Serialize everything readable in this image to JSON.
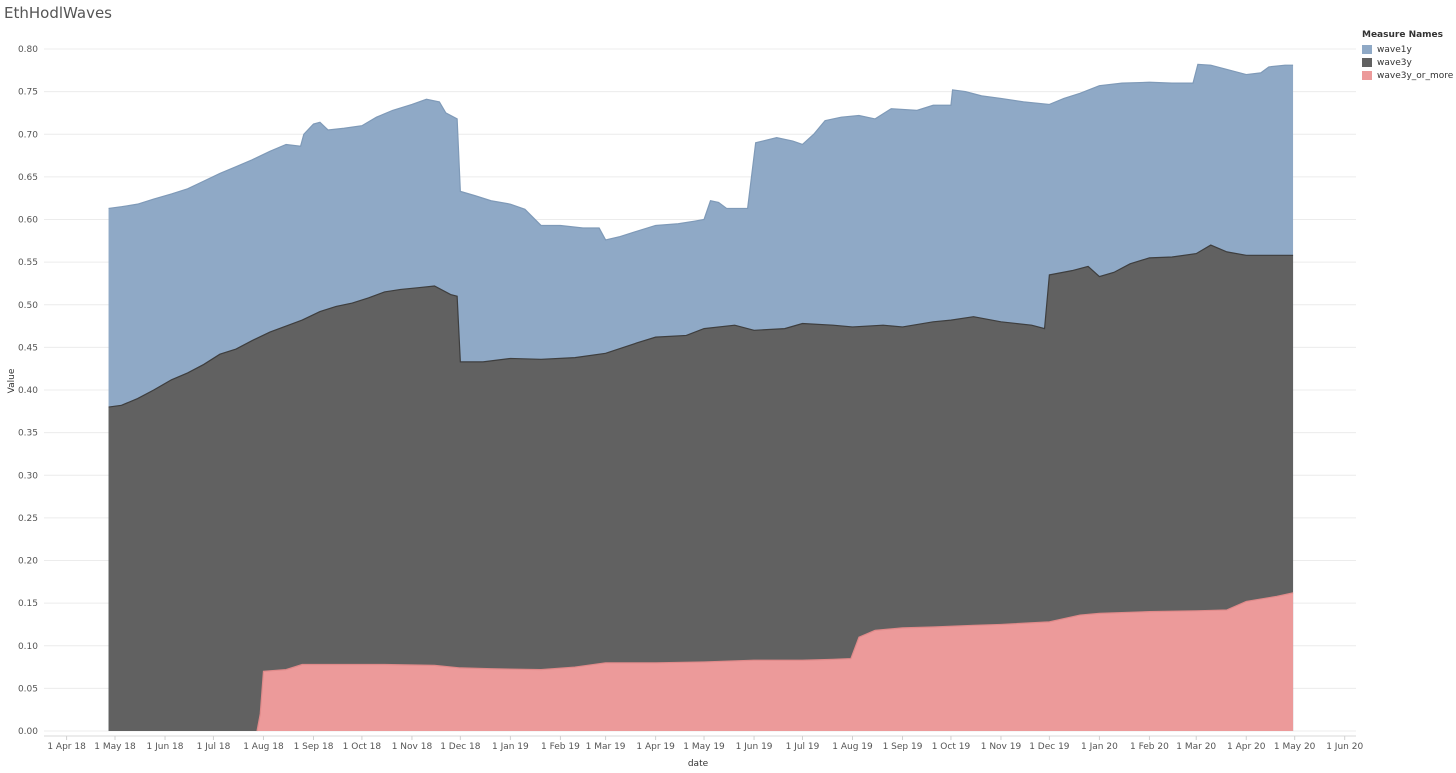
{
  "title": "EthHodlWaves",
  "chart_data": {
    "type": "area",
    "stacked": false,
    "xlabel": "date",
    "ylabel": "Value",
    "ylim": [
      0,
      0.8
    ],
    "xlim": [
      "2018-03-18",
      "2020-06-08"
    ],
    "y_ticks": [
      "0.00",
      "0.05",
      "0.10",
      "0.15",
      "0.20",
      "0.25",
      "0.30",
      "0.35",
      "0.40",
      "0.45",
      "0.50",
      "0.55",
      "0.60",
      "0.65",
      "0.70",
      "0.75",
      "0.80"
    ],
    "x_ticks": [
      {
        "date": "2018-04-01",
        "label": "1 Apr 18"
      },
      {
        "date": "2018-05-01",
        "label": "1 May 18"
      },
      {
        "date": "2018-06-01",
        "label": "1 Jun 18"
      },
      {
        "date": "2018-07-01",
        "label": "1 Jul 18"
      },
      {
        "date": "2018-08-01",
        "label": "1 Aug 18"
      },
      {
        "date": "2018-09-01",
        "label": "1 Sep 18"
      },
      {
        "date": "2018-10-01",
        "label": "1 Oct 18"
      },
      {
        "date": "2018-11-01",
        "label": "1 Nov 18"
      },
      {
        "date": "2018-12-01",
        "label": "1 Dec 18"
      },
      {
        "date": "2019-01-01",
        "label": "1 Jan 19"
      },
      {
        "date": "2019-02-01",
        "label": "1 Feb 19"
      },
      {
        "date": "2019-03-01",
        "label": "1 Mar 19"
      },
      {
        "date": "2019-04-01",
        "label": "1 Apr 19"
      },
      {
        "date": "2019-05-01",
        "label": "1 May 19"
      },
      {
        "date": "2019-06-01",
        "label": "1 Jun 19"
      },
      {
        "date": "2019-07-01",
        "label": "1 Jul 19"
      },
      {
        "date": "2019-08-01",
        "label": "1 Aug 19"
      },
      {
        "date": "2019-09-01",
        "label": "1 Sep 19"
      },
      {
        "date": "2019-10-01",
        "label": "1 Oct 19"
      },
      {
        "date": "2019-11-01",
        "label": "1 Nov 19"
      },
      {
        "date": "2019-12-01",
        "label": "1 Dec 19"
      },
      {
        "date": "2020-01-01",
        "label": "1 Jan 20"
      },
      {
        "date": "2020-02-01",
        "label": "1 Feb 20"
      },
      {
        "date": "2020-03-01",
        "label": "1 Mar 20"
      },
      {
        "date": "2020-04-01",
        "label": "1 Apr 20"
      },
      {
        "date": "2020-05-01",
        "label": "1 May 20"
      },
      {
        "date": "2020-06-01",
        "label": "1 Jun 20"
      }
    ],
    "legend": {
      "title": "Measure Names",
      "position": "right"
    },
    "series": [
      {
        "name": "wave1y",
        "color": "#8fa9c6",
        "points": [
          [
            "2018-04-27",
            0.613
          ],
          [
            "2018-05-05",
            0.615
          ],
          [
            "2018-05-15",
            0.618
          ],
          [
            "2018-05-25",
            0.624
          ],
          [
            "2018-06-05",
            0.63
          ],
          [
            "2018-06-15",
            0.636
          ],
          [
            "2018-06-25",
            0.645
          ],
          [
            "2018-07-05",
            0.654
          ],
          [
            "2018-07-15",
            0.662
          ],
          [
            "2018-07-25",
            0.67
          ],
          [
            "2018-08-05",
            0.68
          ],
          [
            "2018-08-15",
            0.688
          ],
          [
            "2018-08-24",
            0.686
          ],
          [
            "2018-08-26",
            0.7
          ],
          [
            "2018-09-01",
            0.712
          ],
          [
            "2018-09-05",
            0.714
          ],
          [
            "2018-09-10",
            0.705
          ],
          [
            "2018-09-20",
            0.707
          ],
          [
            "2018-10-01",
            0.71
          ],
          [
            "2018-10-10",
            0.72
          ],
          [
            "2018-10-20",
            0.728
          ],
          [
            "2018-11-01",
            0.735
          ],
          [
            "2018-11-10",
            0.741
          ],
          [
            "2018-11-18",
            0.738
          ],
          [
            "2018-11-22",
            0.725
          ],
          [
            "2018-11-29",
            0.718
          ],
          [
            "2018-12-01",
            0.633
          ],
          [
            "2018-12-10",
            0.628
          ],
          [
            "2018-12-20",
            0.622
          ],
          [
            "2019-01-01",
            0.618
          ],
          [
            "2019-01-10",
            0.612
          ],
          [
            "2019-01-20",
            0.593
          ],
          [
            "2019-02-01",
            0.593
          ],
          [
            "2019-02-15",
            0.59
          ],
          [
            "2019-02-25",
            0.59
          ],
          [
            "2019-03-01",
            0.576
          ],
          [
            "2019-03-10",
            0.58
          ],
          [
            "2019-03-20",
            0.586
          ],
          [
            "2019-04-01",
            0.593
          ],
          [
            "2019-04-15",
            0.595
          ],
          [
            "2019-04-25",
            0.598
          ],
          [
            "2019-05-01",
            0.6
          ],
          [
            "2019-05-05",
            0.622
          ],
          [
            "2019-05-10",
            0.62
          ],
          [
            "2019-05-15",
            0.613
          ],
          [
            "2019-05-28",
            0.613
          ],
          [
            "2019-06-02",
            0.69
          ],
          [
            "2019-06-15",
            0.696
          ],
          [
            "2019-06-25",
            0.692
          ],
          [
            "2019-07-01",
            0.688
          ],
          [
            "2019-07-08",
            0.7
          ],
          [
            "2019-07-15",
            0.716
          ],
          [
            "2019-07-25",
            0.72
          ],
          [
            "2019-08-05",
            0.722
          ],
          [
            "2019-08-15",
            0.718
          ],
          [
            "2019-08-25",
            0.73
          ],
          [
            "2019-09-10",
            0.728
          ],
          [
            "2019-09-20",
            0.734
          ],
          [
            "2019-10-01",
            0.734
          ],
          [
            "2019-10-02",
            0.752
          ],
          [
            "2019-10-10",
            0.75
          ],
          [
            "2019-10-20",
            0.745
          ],
          [
            "2019-11-01",
            0.742
          ],
          [
            "2019-11-15",
            0.738
          ],
          [
            "2019-12-01",
            0.735
          ],
          [
            "2019-12-10",
            0.742
          ],
          [
            "2019-12-20",
            0.748
          ],
          [
            "2020-01-01",
            0.757
          ],
          [
            "2020-01-15",
            0.76
          ],
          [
            "2020-02-01",
            0.761
          ],
          [
            "2020-02-15",
            0.76
          ],
          [
            "2020-02-28",
            0.76
          ],
          [
            "2020-03-02",
            0.782
          ],
          [
            "2020-03-10",
            0.781
          ],
          [
            "2020-03-20",
            0.776
          ],
          [
            "2020-04-01",
            0.77
          ],
          [
            "2020-04-10",
            0.772
          ],
          [
            "2020-04-15",
            0.779
          ],
          [
            "2020-04-25",
            0.781
          ],
          [
            "2020-04-30",
            0.781
          ]
        ]
      },
      {
        "name": "wave3y",
        "color": "#616161",
        "points": [
          [
            "2018-04-27",
            0.38
          ],
          [
            "2018-05-05",
            0.382
          ],
          [
            "2018-05-15",
            0.39
          ],
          [
            "2018-05-25",
            0.4
          ],
          [
            "2018-06-05",
            0.412
          ],
          [
            "2018-06-15",
            0.42
          ],
          [
            "2018-06-25",
            0.43
          ],
          [
            "2018-07-05",
            0.442
          ],
          [
            "2018-07-15",
            0.448
          ],
          [
            "2018-07-25",
            0.458
          ],
          [
            "2018-08-05",
            0.468
          ],
          [
            "2018-08-15",
            0.475
          ],
          [
            "2018-08-25",
            0.482
          ],
          [
            "2018-09-05",
            0.492
          ],
          [
            "2018-09-15",
            0.498
          ],
          [
            "2018-09-25",
            0.502
          ],
          [
            "2018-10-05",
            0.508
          ],
          [
            "2018-10-15",
            0.515
          ],
          [
            "2018-10-25",
            0.518
          ],
          [
            "2018-11-05",
            0.52
          ],
          [
            "2018-11-15",
            0.522
          ],
          [
            "2018-11-25",
            0.512
          ],
          [
            "2018-11-29",
            0.51
          ],
          [
            "2018-12-01",
            0.433
          ],
          [
            "2018-12-15",
            0.433
          ],
          [
            "2019-01-01",
            0.437
          ],
          [
            "2019-01-20",
            0.436
          ],
          [
            "2019-02-10",
            0.438
          ],
          [
            "2019-03-01",
            0.443
          ],
          [
            "2019-03-20",
            0.455
          ],
          [
            "2019-04-01",
            0.462
          ],
          [
            "2019-04-20",
            0.464
          ],
          [
            "2019-05-01",
            0.472
          ],
          [
            "2019-05-20",
            0.476
          ],
          [
            "2019-06-01",
            0.47
          ],
          [
            "2019-06-20",
            0.472
          ],
          [
            "2019-07-01",
            0.478
          ],
          [
            "2019-07-20",
            0.476
          ],
          [
            "2019-08-01",
            0.474
          ],
          [
            "2019-08-20",
            0.476
          ],
          [
            "2019-09-01",
            0.474
          ],
          [
            "2019-09-20",
            0.48
          ],
          [
            "2019-10-01",
            0.482
          ],
          [
            "2019-10-15",
            0.486
          ],
          [
            "2019-11-01",
            0.48
          ],
          [
            "2019-11-20",
            0.476
          ],
          [
            "2019-11-28",
            0.472
          ],
          [
            "2019-12-01",
            0.535
          ],
          [
            "2019-12-15",
            0.54
          ],
          [
            "2019-12-25",
            0.545
          ],
          [
            "2020-01-01",
            0.533
          ],
          [
            "2020-01-10",
            0.538
          ],
          [
            "2020-01-20",
            0.548
          ],
          [
            "2020-02-01",
            0.555
          ],
          [
            "2020-02-15",
            0.556
          ],
          [
            "2020-03-01",
            0.56
          ],
          [
            "2020-03-10",
            0.57
          ],
          [
            "2020-03-20",
            0.562
          ],
          [
            "2020-04-01",
            0.558
          ],
          [
            "2020-04-30",
            0.558
          ]
        ]
      },
      {
        "name": "wave3y_or_more",
        "color": "#ec9a9a",
        "points": [
          [
            "2018-07-28",
            0.0
          ],
          [
            "2018-07-30",
            0.02
          ],
          [
            "2018-08-01",
            0.07
          ],
          [
            "2018-08-15",
            0.072
          ],
          [
            "2018-08-25",
            0.078
          ],
          [
            "2018-09-15",
            0.078
          ],
          [
            "2018-10-15",
            0.078
          ],
          [
            "2018-11-15",
            0.077
          ],
          [
            "2018-12-01",
            0.074
          ],
          [
            "2018-12-20",
            0.073
          ],
          [
            "2019-01-20",
            0.072
          ],
          [
            "2019-02-10",
            0.075
          ],
          [
            "2019-03-01",
            0.08
          ],
          [
            "2019-04-01",
            0.08
          ],
          [
            "2019-05-01",
            0.081
          ],
          [
            "2019-06-01",
            0.083
          ],
          [
            "2019-07-01",
            0.083
          ],
          [
            "2019-07-20",
            0.084
          ],
          [
            "2019-07-31",
            0.085
          ],
          [
            "2019-08-05",
            0.11
          ],
          [
            "2019-08-15",
            0.118
          ],
          [
            "2019-09-01",
            0.121
          ],
          [
            "2019-09-20",
            0.122
          ],
          [
            "2019-10-15",
            0.124
          ],
          [
            "2019-11-01",
            0.125
          ],
          [
            "2019-12-01",
            0.128
          ],
          [
            "2019-12-20",
            0.136
          ],
          [
            "2020-01-01",
            0.138
          ],
          [
            "2020-02-01",
            0.14
          ],
          [
            "2020-03-01",
            0.141
          ],
          [
            "2020-03-20",
            0.142
          ],
          [
            "2020-04-01",
            0.152
          ],
          [
            "2020-04-20",
            0.158
          ],
          [
            "2020-04-30",
            0.162
          ]
        ]
      }
    ]
  }
}
